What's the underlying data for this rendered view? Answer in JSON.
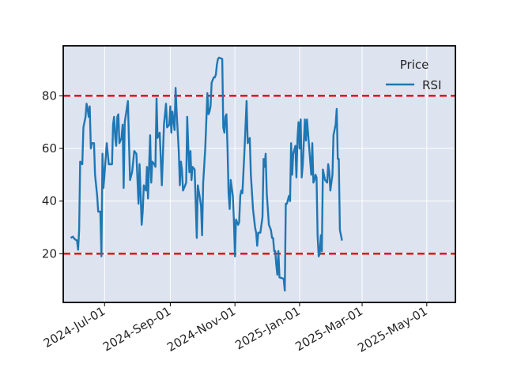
{
  "chart_data": {
    "type": "line",
    "title": "",
    "xlabel": "",
    "ylabel": "",
    "x_range": [
      "2024-05-23",
      "2025-05-28"
    ],
    "ylim": [
      1.5,
      99
    ],
    "y_ticks": [
      20,
      40,
      60,
      80
    ],
    "x_ticks": [
      {
        "date": "2024-07-01",
        "label": "2024-Jul-01"
      },
      {
        "date": "2024-09-01",
        "label": "2024-Sep-01"
      },
      {
        "date": "2024-11-01",
        "label": "2024-Nov-01"
      },
      {
        "date": "2025-01-01",
        "label": "2025-Jan-01"
      },
      {
        "date": "2025-03-01",
        "label": "2025-Mar-01"
      },
      {
        "date": "2025-05-01",
        "label": "2025-May-01"
      }
    ],
    "grid": true,
    "legend": {
      "title": "Price",
      "placement": "top-right"
    },
    "series": [
      {
        "name": "RSI",
        "color": "#1f77b4",
        "points": [
          [
            "2024-05-30",
            26
          ],
          [
            "2024-06-01",
            26.5
          ],
          [
            "2024-06-03",
            25.5
          ],
          [
            "2024-06-05",
            25
          ],
          [
            "2024-06-06",
            21.5
          ],
          [
            "2024-06-07",
            29
          ],
          [
            "2024-06-08",
            55
          ],
          [
            "2024-06-10",
            54
          ],
          [
            "2024-06-11",
            68
          ],
          [
            "2024-06-13",
            72
          ],
          [
            "2024-06-14",
            77
          ],
          [
            "2024-06-15",
            75
          ],
          [
            "2024-06-16",
            72
          ],
          [
            "2024-06-17",
            76
          ],
          [
            "2024-06-18",
            60
          ],
          [
            "2024-06-19",
            62
          ],
          [
            "2024-06-21",
            62
          ],
          [
            "2024-06-22",
            50
          ],
          [
            "2024-06-24",
            42
          ],
          [
            "2024-06-25",
            36
          ],
          [
            "2024-06-27",
            36
          ],
          [
            "2024-06-28",
            19
          ],
          [
            "2024-06-29",
            58
          ],
          [
            "2024-06-30",
            45
          ],
          [
            "2024-07-02",
            56
          ],
          [
            "2024-07-03",
            62
          ],
          [
            "2024-07-05",
            54
          ],
          [
            "2024-07-08",
            54
          ],
          [
            "2024-07-09",
            69
          ],
          [
            "2024-07-10",
            72
          ],
          [
            "2024-07-11",
            64
          ],
          [
            "2024-07-12",
            61
          ],
          [
            "2024-07-13",
            72
          ],
          [
            "2024-07-14",
            73
          ],
          [
            "2024-07-15",
            62
          ],
          [
            "2024-07-17",
            64
          ],
          [
            "2024-07-18",
            69
          ],
          [
            "2024-07-19",
            45
          ],
          [
            "2024-07-20",
            70
          ],
          [
            "2024-07-23",
            78
          ],
          [
            "2024-07-24",
            63
          ],
          [
            "2024-07-25",
            48
          ],
          [
            "2024-07-27",
            51
          ],
          [
            "2024-07-29",
            59
          ],
          [
            "2024-07-31",
            58
          ],
          [
            "2024-08-02",
            39
          ],
          [
            "2024-08-03",
            54
          ],
          [
            "2024-08-05",
            31
          ],
          [
            "2024-08-06",
            36
          ],
          [
            "2024-08-07",
            46
          ],
          [
            "2024-08-09",
            44
          ],
          [
            "2024-08-10",
            53
          ],
          [
            "2024-08-11",
            41
          ],
          [
            "2024-08-13",
            65
          ],
          [
            "2024-08-14",
            47
          ],
          [
            "2024-08-15",
            55
          ],
          [
            "2024-08-17",
            54
          ],
          [
            "2024-08-18",
            53
          ],
          [
            "2024-08-19",
            79
          ],
          [
            "2024-08-20",
            64
          ],
          [
            "2024-08-22",
            66
          ],
          [
            "2024-08-24",
            46
          ],
          [
            "2024-08-26",
            69
          ],
          [
            "2024-08-28",
            77
          ],
          [
            "2024-08-29",
            68
          ],
          [
            "2024-08-31",
            69
          ],
          [
            "2024-09-01",
            76
          ],
          [
            "2024-09-02",
            66
          ],
          [
            "2024-09-03",
            74
          ],
          [
            "2024-09-05",
            67
          ],
          [
            "2024-09-06",
            83
          ],
          [
            "2024-09-07",
            74
          ],
          [
            "2024-09-09",
            59
          ],
          [
            "2024-09-10",
            46
          ],
          [
            "2024-09-11",
            55
          ],
          [
            "2024-09-12",
            52
          ],
          [
            "2024-09-13",
            44
          ],
          [
            "2024-09-15",
            46
          ],
          [
            "2024-09-16",
            47
          ],
          [
            "2024-09-17",
            72
          ],
          [
            "2024-09-18",
            60
          ],
          [
            "2024-09-19",
            51
          ],
          [
            "2024-09-20",
            59
          ],
          [
            "2024-09-21",
            48
          ],
          [
            "2024-09-22",
            53
          ],
          [
            "2024-09-24",
            52
          ],
          [
            "2024-09-26",
            26
          ],
          [
            "2024-09-27",
            46
          ],
          [
            "2024-09-29",
            41
          ],
          [
            "2024-09-30",
            38
          ],
          [
            "2024-10-01",
            27
          ],
          [
            "2024-10-02",
            47
          ],
          [
            "2024-10-04",
            60
          ],
          [
            "2024-10-06",
            81
          ],
          [
            "2024-10-07",
            73
          ],
          [
            "2024-10-08",
            74
          ],
          [
            "2024-10-09",
            76
          ],
          [
            "2024-10-10",
            85
          ],
          [
            "2024-10-11",
            86
          ],
          [
            "2024-10-12",
            87
          ],
          [
            "2024-10-13",
            87
          ],
          [
            "2024-10-14",
            88
          ],
          [
            "2024-10-15",
            92
          ],
          [
            "2024-10-16",
            94
          ],
          [
            "2024-10-17",
            94.5
          ],
          [
            "2024-10-20",
            94
          ],
          [
            "2024-10-21",
            68
          ],
          [
            "2024-10-22",
            66
          ],
          [
            "2024-10-23",
            72
          ],
          [
            "2024-10-24",
            73
          ],
          [
            "2024-10-25",
            60
          ],
          [
            "2024-10-26",
            43
          ],
          [
            "2024-10-27",
            37
          ],
          [
            "2024-10-28",
            48
          ],
          [
            "2024-10-30",
            42
          ],
          [
            "2024-10-31",
            33
          ],
          [
            "2024-11-01",
            19
          ],
          [
            "2024-11-02",
            33
          ],
          [
            "2024-11-04",
            31
          ],
          [
            "2024-11-05",
            32
          ],
          [
            "2024-11-06",
            42
          ],
          [
            "2024-11-07",
            44
          ],
          [
            "2024-11-08",
            43
          ],
          [
            "2024-11-10",
            59
          ],
          [
            "2024-11-12",
            78
          ],
          [
            "2024-11-13",
            62
          ],
          [
            "2024-11-15",
            64
          ],
          [
            "2024-11-16",
            50
          ],
          [
            "2024-11-18",
            37
          ],
          [
            "2024-11-20",
            30
          ],
          [
            "2024-11-21",
            28
          ],
          [
            "2024-11-22",
            23
          ],
          [
            "2024-11-23",
            28
          ],
          [
            "2024-11-25",
            28
          ],
          [
            "2024-11-27",
            34
          ],
          [
            "2024-11-28",
            56
          ],
          [
            "2024-11-29",
            53
          ],
          [
            "2024-11-30",
            58
          ],
          [
            "2024-12-01",
            43
          ],
          [
            "2024-12-03",
            31
          ],
          [
            "2024-12-05",
            29
          ],
          [
            "2024-12-06",
            26
          ],
          [
            "2024-12-07",
            26
          ],
          [
            "2024-12-08",
            21
          ],
          [
            "2024-12-09",
            21
          ],
          [
            "2024-12-10",
            16
          ],
          [
            "2024-12-11",
            12
          ],
          [
            "2024-12-12",
            21
          ],
          [
            "2024-12-13",
            11
          ],
          [
            "2024-12-17",
            10.5
          ],
          [
            "2024-12-18",
            6
          ],
          [
            "2024-12-19",
            39
          ],
          [
            "2024-12-20",
            39
          ],
          [
            "2024-12-22",
            42
          ],
          [
            "2024-12-23",
            40
          ],
          [
            "2024-12-24",
            62
          ],
          [
            "2024-12-25",
            50
          ],
          [
            "2024-12-26",
            58
          ],
          [
            "2024-12-28",
            61
          ],
          [
            "2024-12-29",
            49
          ],
          [
            "2024-12-30",
            64
          ],
          [
            "2024-12-31",
            70
          ],
          [
            "2025-01-01",
            60
          ],
          [
            "2025-01-02",
            71
          ],
          [
            "2025-01-03",
            49
          ],
          [
            "2025-01-04",
            54
          ],
          [
            "2025-01-06",
            71
          ],
          [
            "2025-01-07",
            63
          ],
          [
            "2025-01-08",
            71
          ],
          [
            "2025-01-12",
            50
          ],
          [
            "2025-01-13",
            62
          ],
          [
            "2025-01-14",
            47
          ],
          [
            "2025-01-15",
            48
          ],
          [
            "2025-01-16",
            50
          ],
          [
            "2025-01-17",
            49
          ],
          [
            "2025-01-18",
            27
          ],
          [
            "2025-01-19",
            19
          ],
          [
            "2025-01-20",
            20
          ],
          [
            "2025-01-21",
            27
          ],
          [
            "2025-01-22",
            21
          ],
          [
            "2025-01-23",
            52
          ],
          [
            "2025-01-25",
            48
          ],
          [
            "2025-01-27",
            47
          ],
          [
            "2025-01-28",
            54
          ],
          [
            "2025-01-29",
            51
          ],
          [
            "2025-01-30",
            44
          ],
          [
            "2025-02-01",
            50
          ],
          [
            "2025-02-02",
            65
          ],
          [
            "2025-02-04",
            69
          ],
          [
            "2025-02-05",
            75
          ],
          [
            "2025-02-06",
            56
          ],
          [
            "2025-02-07",
            56
          ],
          [
            "2025-02-08",
            29
          ],
          [
            "2025-02-10",
            25
          ]
        ]
      }
    ],
    "reference_lines": [
      {
        "y": 80,
        "color": "#e8000b",
        "style": "dashed"
      },
      {
        "y": 20,
        "color": "#e8000b",
        "style": "dashed"
      }
    ],
    "colors": {
      "plot_bg": "#dde3ef",
      "grid": "#ffffff",
      "axes": "#000000"
    }
  }
}
